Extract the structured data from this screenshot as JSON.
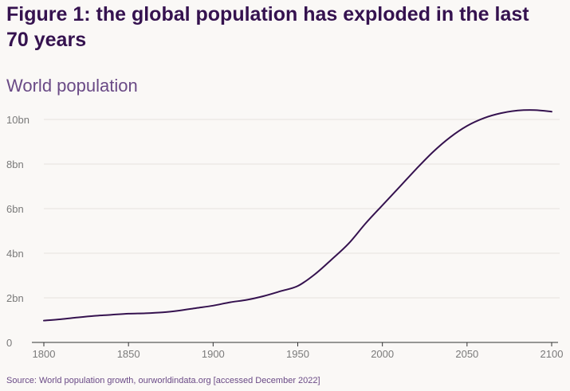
{
  "figure": {
    "title": "Figure 1: the global population has exploded in the last 70 years",
    "source": "Source: World population growth, ourworldindata.org [accessed December 2022]"
  },
  "colors": {
    "background": "#faf8f6",
    "title": "#35124f",
    "line": "#35124f",
    "text_muted": "#6a4a86",
    "axis_label": "#7a7a7a",
    "grid": "#e6e2de",
    "axis": "#333333"
  },
  "chart_data": {
    "type": "line",
    "title": "World population",
    "xlabel": "",
    "ylabel": "",
    "xlim": [
      1800,
      2100
    ],
    "ylim": [
      0,
      10
    ],
    "x_ticks": [
      1800,
      1850,
      1900,
      1950,
      2000,
      2050,
      2100
    ],
    "y_ticks": [
      0,
      2,
      4,
      6,
      8,
      10
    ],
    "y_tick_labels": [
      "0",
      "2bn",
      "4bn",
      "6bn",
      "8bn",
      "10bn"
    ],
    "grid": true,
    "series": [
      {
        "x": [
          1800,
          1810,
          1820,
          1830,
          1840,
          1850,
          1860,
          1870,
          1880,
          1890,
          1900,
          1910,
          1920,
          1930,
          1940,
          1950,
          1960,
          1970,
          1980,
          1990,
          2000,
          2010,
          2020,
          2030,
          2040,
          2050,
          2060,
          2070,
          2080,
          2090,
          2100
        ],
        "values": [
          0.98,
          1.04,
          1.12,
          1.19,
          1.24,
          1.29,
          1.31,
          1.35,
          1.43,
          1.54,
          1.65,
          1.8,
          1.91,
          2.08,
          2.3,
          2.53,
          3.05,
          3.72,
          4.43,
          5.33,
          6.15,
          6.96,
          7.78,
          8.55,
          9.2,
          9.71,
          10.06,
          10.28,
          10.4,
          10.42,
          10.35
        ]
      }
    ]
  }
}
